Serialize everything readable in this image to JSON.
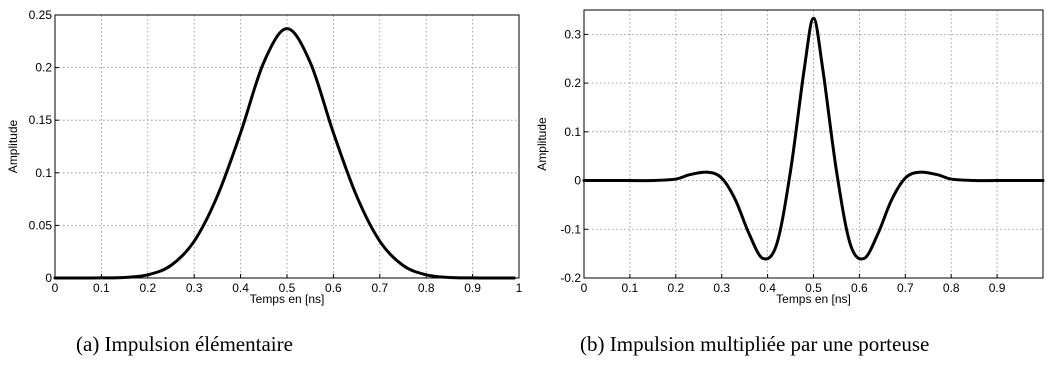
{
  "chart_data": [
    {
      "type": "line",
      "caption": "(a) Impulsion élémentaire",
      "xlabel": "Temps en [ns]",
      "ylabel": "Amplitude",
      "xlim": [
        0,
        1
      ],
      "ylim": [
        0,
        0.25
      ],
      "xticks": [
        "0",
        "0.1",
        "0.2",
        "0.3",
        "0.4",
        "0.5",
        "0.6",
        "0.7",
        "0.8",
        "0.9",
        "1"
      ],
      "yticks": [
        "0",
        "0.05",
        "0.1",
        "0.15",
        "0.2",
        "0.25"
      ],
      "grid": true,
      "line_color": "#000000",
      "x": [
        0,
        0.05,
        0.1,
        0.15,
        0.2,
        0.25,
        0.3,
        0.35,
        0.4,
        0.45,
        0.5,
        0.55,
        0.6,
        0.65,
        0.7,
        0.75,
        0.8,
        0.85,
        0.9,
        0.95,
        0.99
      ],
      "y": [
        0,
        0,
        0.0001,
        0.0005,
        0.003,
        0.012,
        0.035,
        0.078,
        0.138,
        0.205,
        0.237,
        0.205,
        0.138,
        0.078,
        0.035,
        0.012,
        0.003,
        0.0005,
        0.0001,
        0,
        0
      ]
    },
    {
      "type": "line",
      "caption": "(b) Impulsion multipliée par une porteuse",
      "xlabel": "Temps en [ns]",
      "ylabel": "Amplitude",
      "xlim": [
        0,
        1
      ],
      "ylim": [
        -0.2,
        0.35
      ],
      "xticks": [
        "0",
        "0.1",
        "0.2",
        "0.3",
        "0.4",
        "0.5",
        "0.6",
        "0.7",
        "0.8",
        "0.9"
      ],
      "yticks": [
        "-0.2",
        "-0.1",
        "0",
        "0.1",
        "0.2",
        "0.3"
      ],
      "grid": true,
      "line_color": "#000000",
      "x": [
        0,
        0.1,
        0.15,
        0.2,
        0.23,
        0.27,
        0.3,
        0.33,
        0.36,
        0.39,
        0.42,
        0.45,
        0.48,
        0.5,
        0.52,
        0.55,
        0.58,
        0.61,
        0.64,
        0.67,
        0.7,
        0.73,
        0.77,
        0.8,
        0.85,
        0.9,
        1
      ],
      "y": [
        0,
        0,
        0,
        0.003,
        0.012,
        0.017,
        0.005,
        -0.04,
        -0.11,
        -0.16,
        -0.13,
        0.02,
        0.23,
        0.333,
        0.23,
        0.02,
        -0.13,
        -0.16,
        -0.11,
        -0.04,
        0.005,
        0.017,
        0.012,
        0.003,
        0,
        0,
        0
      ]
    }
  ]
}
